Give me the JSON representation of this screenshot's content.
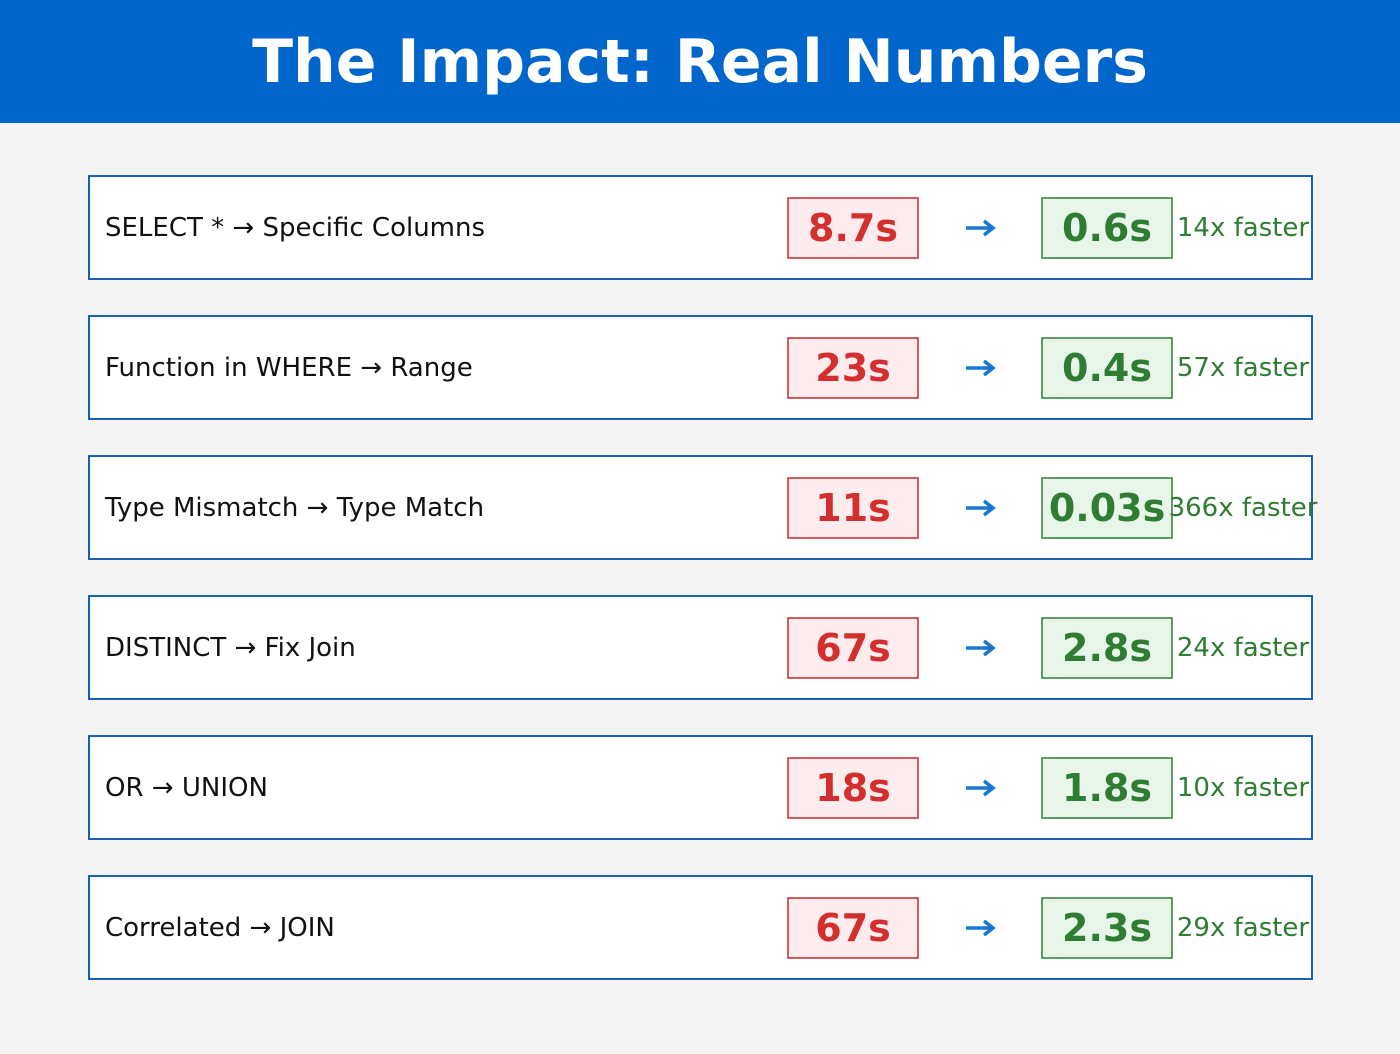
{
  "header": {
    "title": "The Impact: Real Numbers"
  },
  "rows": [
    {
      "label": "SELECT * → Specific Columns",
      "before": "8.7s",
      "after": "0.6s",
      "speedup": "14x faster"
    },
    {
      "label": "Function in WHERE → Range",
      "before": "23s",
      "after": "0.4s",
      "speedup": "57x faster"
    },
    {
      "label": "Type Mismatch → Type Match",
      "before": "11s",
      "after": "0.03s",
      "speedup": "366x faster"
    },
    {
      "label": "DISTINCT → Fix Join",
      "before": "67s",
      "after": "2.8s",
      "speedup": "24x faster"
    },
    {
      "label": "OR → UNION",
      "before": "18s",
      "after": "1.8s",
      "speedup": "10x faster"
    },
    {
      "label": "Correlated → JOIN",
      "before": "67s",
      "after": "2.3s",
      "speedup": "29x faster"
    }
  ]
}
